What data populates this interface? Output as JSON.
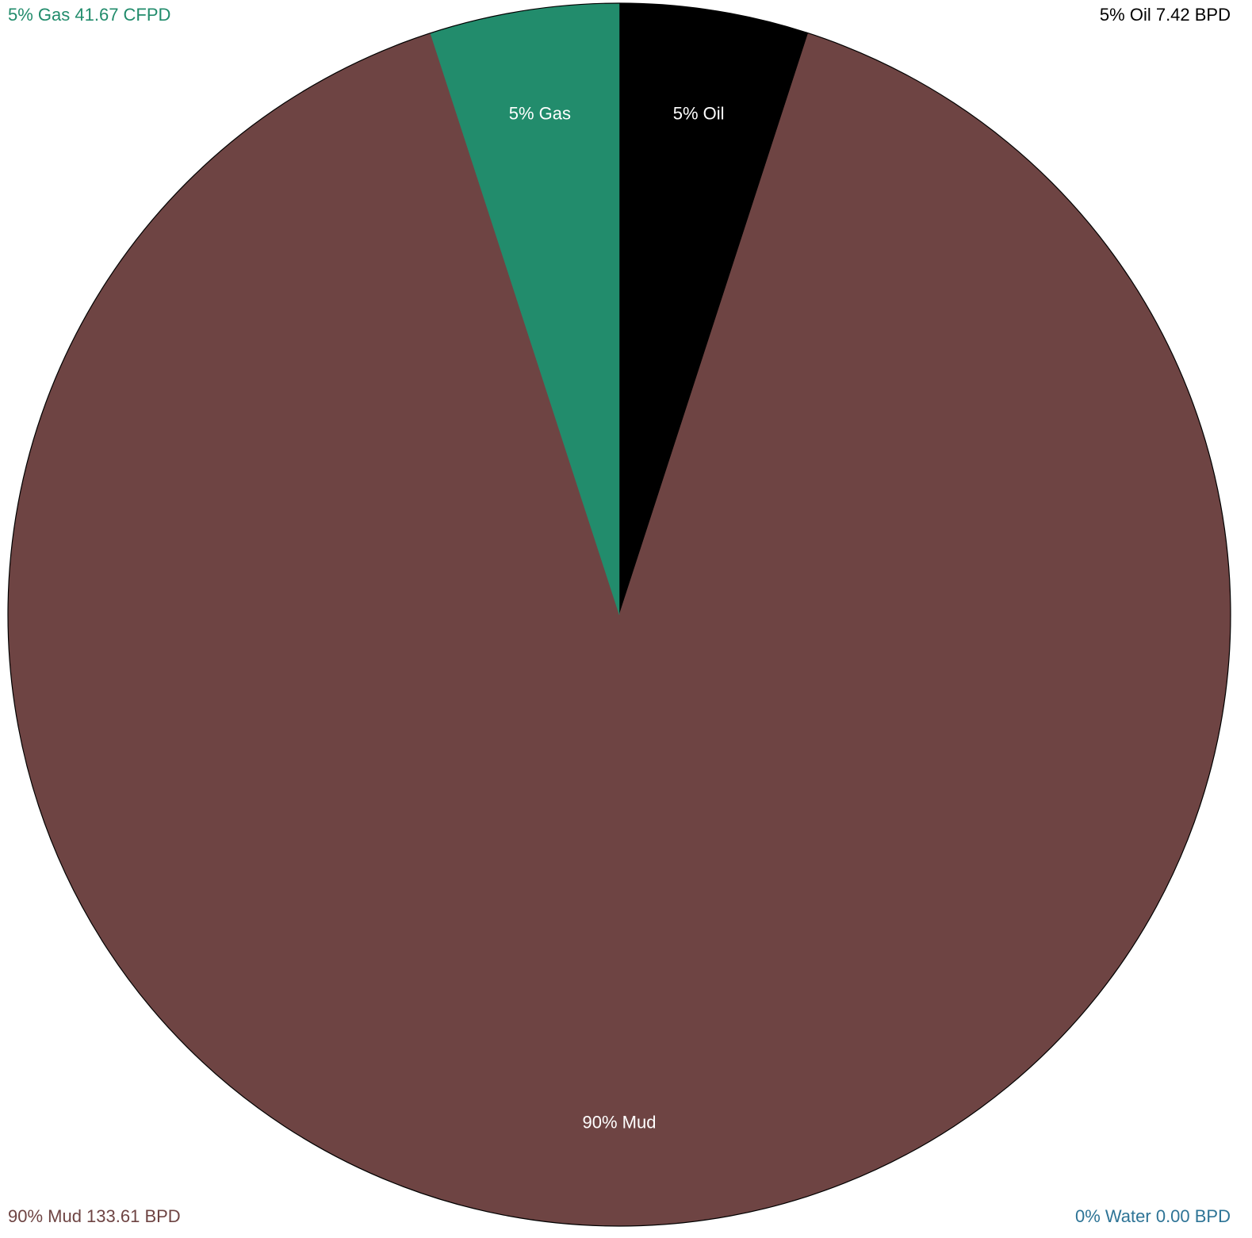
{
  "chart_data": {
    "type": "pie",
    "start_angle_deg": 0,
    "direction": "clockwise",
    "slices": [
      {
        "label": "5% Oil",
        "value": 5,
        "color": "#000000"
      },
      {
        "label": "90% Mud",
        "value": 90,
        "color": "#6e4443"
      },
      {
        "label": "5% Gas",
        "value": 5,
        "color": "#228c6c"
      }
    ],
    "outline_color": "#000000",
    "legend": {
      "top_left": {
        "text": "5% Gas 41.67 CFPD",
        "color": "#228c6c"
      },
      "top_right": {
        "text": "5% Oil 7.42 BPD",
        "color": "#000000"
      },
      "bottom_left": {
        "text": "90% Mud 133.61 BPD",
        "color": "#6e4443"
      },
      "bottom_right": {
        "text": "0% Water 0.00 BPD",
        "color": "#2e7496"
      }
    }
  }
}
